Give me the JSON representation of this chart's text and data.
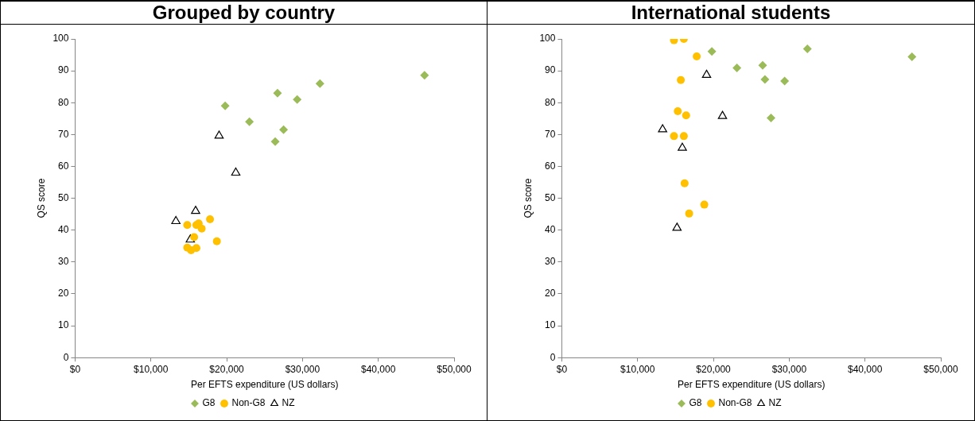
{
  "chart_data": [
    {
      "type": "scatter",
      "title": "Grouped by country",
      "xlabel": "Per EFTS expenditure (US dollars)",
      "ylabel": "QS score",
      "xlim": [
        0,
        50000
      ],
      "xticks": [
        {
          "value": 0,
          "label": "$0"
        },
        {
          "value": 10000,
          "label": "$10,000"
        },
        {
          "value": 20000,
          "label": "$20,000"
        },
        {
          "value": 30000,
          "label": "$30,000"
        },
        {
          "value": 40000,
          "label": "$40,000"
        },
        {
          "value": 50000,
          "label": "$50,000"
        }
      ],
      "ylim": [
        0,
        100
      ],
      "yticks": [
        0,
        10,
        20,
        30,
        40,
        50,
        60,
        70,
        80,
        90,
        100
      ],
      "grid": false,
      "legend": "bottom",
      "series": [
        {
          "name": "G8",
          "color": "#9bbb59",
          "marker": "diamond",
          "x": [
            19800,
            23000,
            26700,
            29300,
            32300,
            27500,
            26400,
            46100
          ],
          "values": [
            79,
            74,
            83,
            81,
            86,
            71.5,
            67.8,
            88.6
          ]
        },
        {
          "name": "Non-G8",
          "color": "#ffc000",
          "marker": "circle",
          "x": [
            14800,
            16300,
            16000,
            16700,
            17800,
            15700,
            18700,
            14800,
            15300,
            16000
          ],
          "values": [
            41.6,
            42.1,
            41.6,
            40.5,
            43.4,
            37.8,
            36.5,
            34.5,
            33.7,
            34.4
          ]
        },
        {
          "name": "NZ",
          "color": "#000000",
          "marker": "triangle",
          "x": [
            19000,
            21200,
            15900,
            13300,
            15200
          ],
          "values": [
            69.6,
            58,
            46,
            42.8,
            37
          ]
        }
      ]
    },
    {
      "type": "scatter",
      "title": "International students",
      "xlabel": "Per EFTS expenditure (US dollars)",
      "ylabel": "QS score",
      "xlim": [
        0,
        50000
      ],
      "xticks": [
        {
          "value": 0,
          "label": "$0"
        },
        {
          "value": 10000,
          "label": "$10,000"
        },
        {
          "value": 20000,
          "label": "$20,000"
        },
        {
          "value": 30000,
          "label": "$30,000"
        },
        {
          "value": 40000,
          "label": "$40,000"
        },
        {
          "value": 50000,
          "label": "$50,000"
        }
      ],
      "ylim": [
        0,
        100
      ],
      "yticks": [
        0,
        10,
        20,
        30,
        40,
        50,
        60,
        70,
        80,
        90,
        100
      ],
      "grid": false,
      "legend": "bottom",
      "series": [
        {
          "name": "G8",
          "color": "#9bbb59",
          "marker": "diamond",
          "x": [
            19800,
            32400,
            46200,
            23100,
            26500,
            26800,
            29400,
            27600
          ],
          "values": [
            96.1,
            96.9,
            94.4,
            90.9,
            91.7,
            87.3,
            86.8,
            75.2
          ]
        },
        {
          "name": "Non-G8",
          "color": "#ffc000",
          "marker": "circle",
          "x": [
            14800,
            16100,
            17800,
            15700,
            15300,
            16400,
            14800,
            16100,
            16200,
            18800,
            16800
          ],
          "values": [
            99.6,
            100,
            94.5,
            87.1,
            77.3,
            76,
            69.5,
            69.5,
            54.7,
            48,
            45.2
          ]
        },
        {
          "name": "NZ",
          "color": "#000000",
          "marker": "triangle",
          "x": [
            19100,
            21200,
            13300,
            15900,
            15200
          ],
          "values": [
            88.7,
            75.8,
            71.6,
            65.8,
            40.7
          ]
        }
      ]
    }
  ]
}
